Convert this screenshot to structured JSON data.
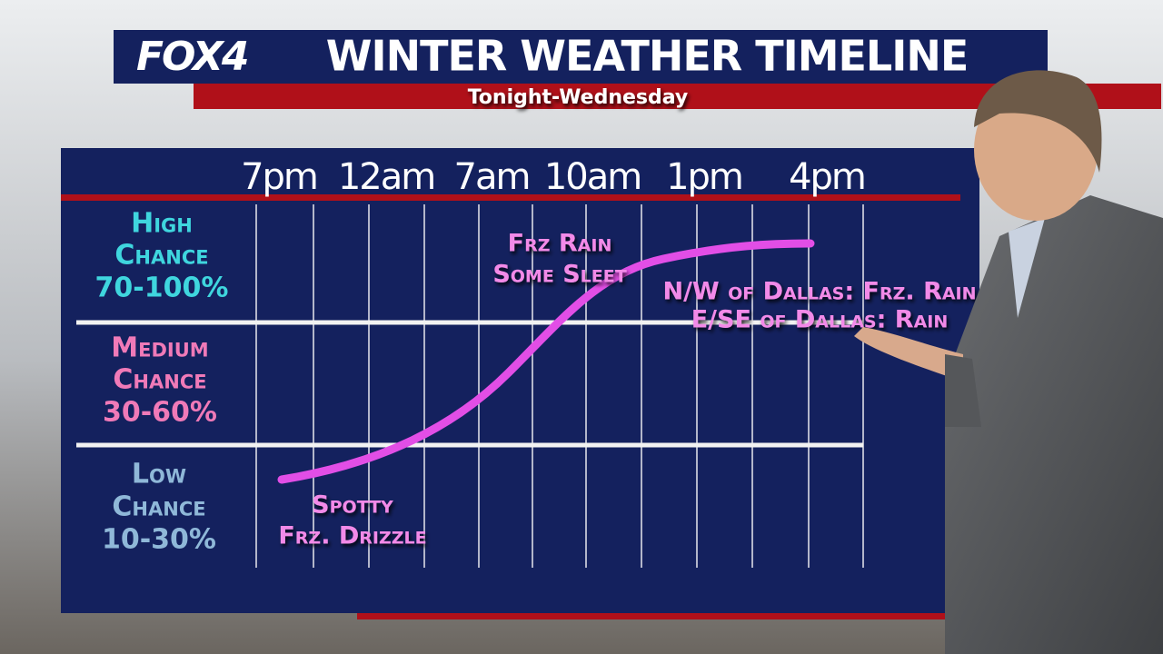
{
  "header": {
    "logo": "FOX4",
    "title": "WINTER WEATHER TIMELINE",
    "subtitle": "Tonight-Wednesday"
  },
  "times": [
    "7pm",
    "12am",
    "7am",
    "10am",
    "1pm",
    "4pm"
  ],
  "levels": [
    {
      "name": "High",
      "chance": "Chance",
      "range": "70-100%"
    },
    {
      "name": "Medium",
      "chance": "Chance",
      "range": "30-60%"
    },
    {
      "name": "Low",
      "chance": "Chance",
      "range": "10-30%"
    }
  ],
  "annotations": [
    {
      "lines": [
        "Frz Rain",
        "Some Sleet"
      ]
    },
    {
      "lines": [
        "Spotty",
        "Frz. Drizzle"
      ]
    },
    {
      "lines": [
        "N/W of Dallas: Frz. Rain",
        "E/SE of Dallas: Rain"
      ]
    }
  ]
}
